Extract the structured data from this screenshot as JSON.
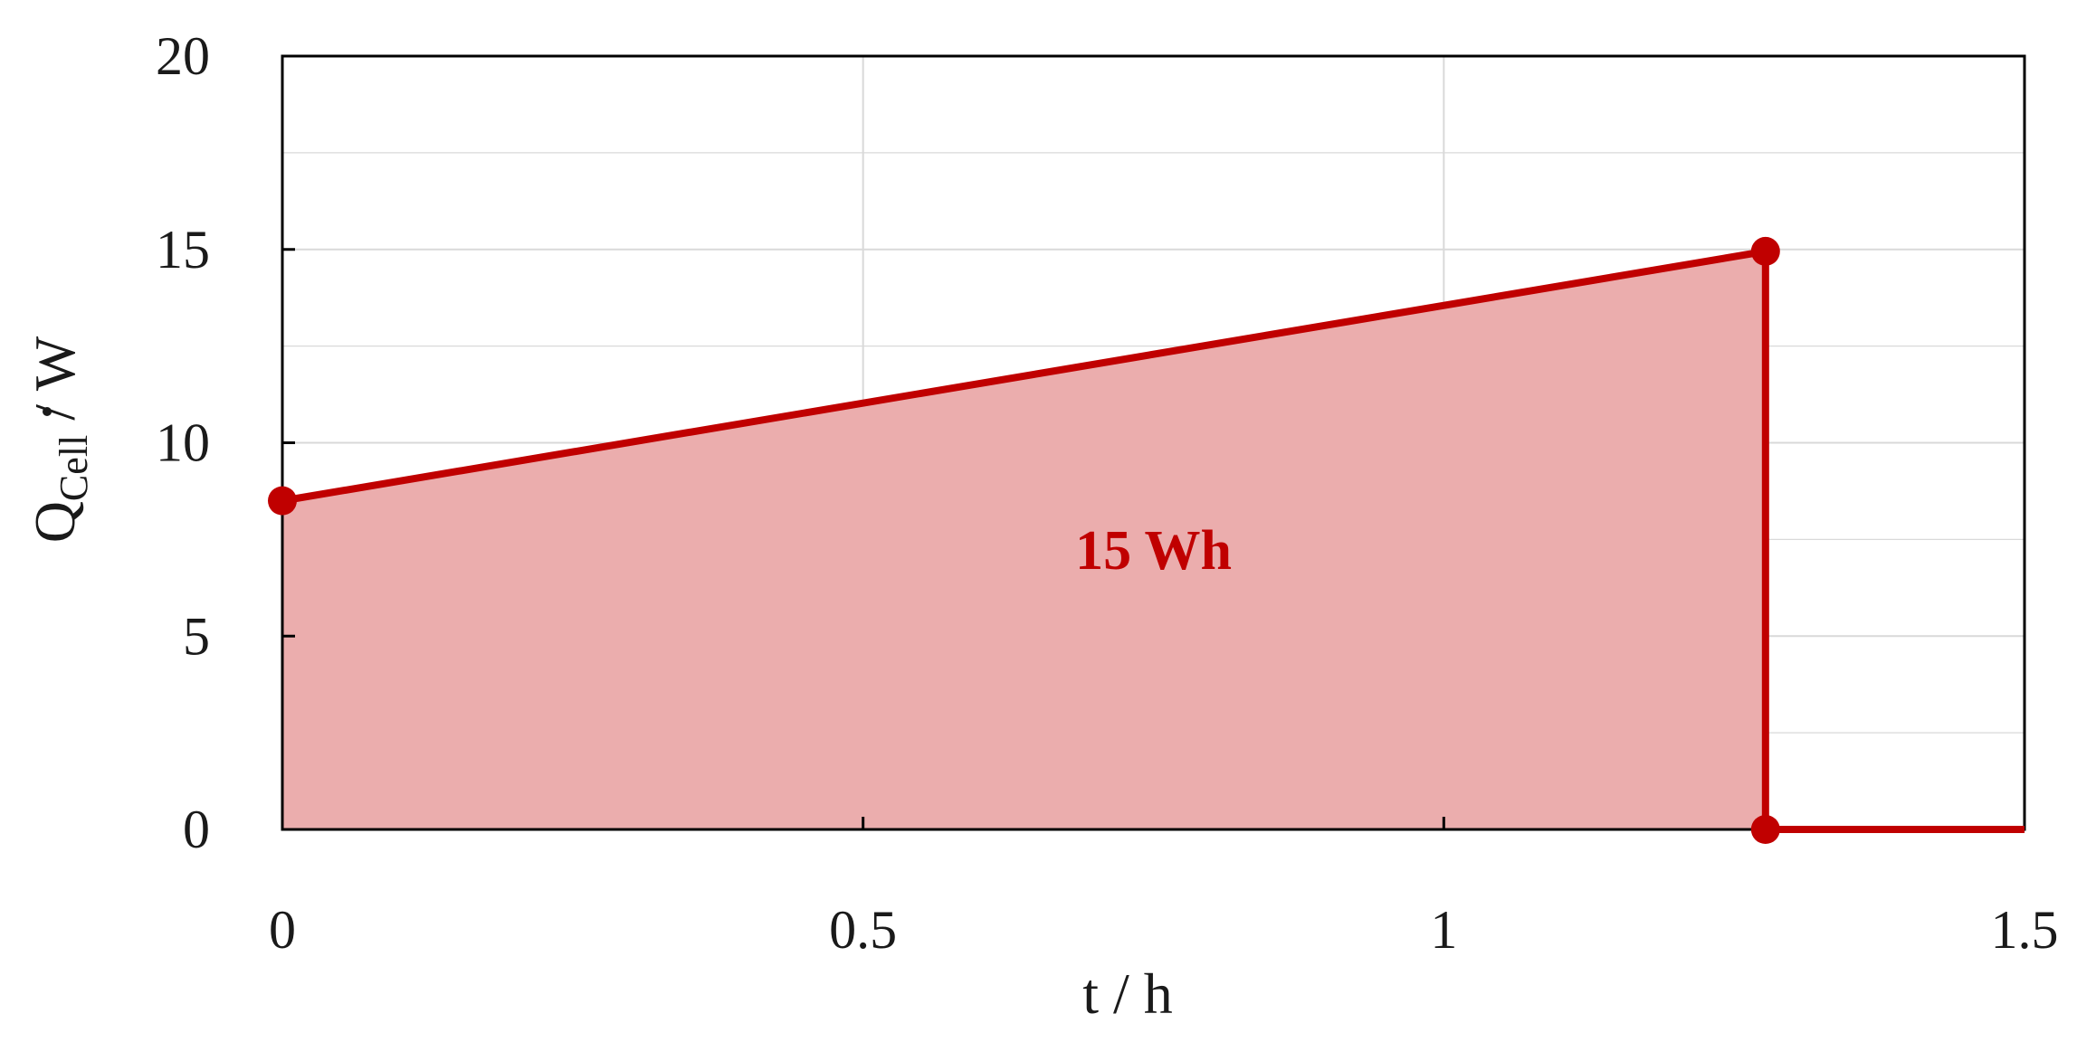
{
  "chart_data": {
    "type": "area",
    "title": "",
    "xlabel": "t / h",
    "ylabel": {
      "symbol": "Q",
      "subscript": "Cell",
      "unit": " / W"
    },
    "xlim": [
      0,
      1.5
    ],
    "ylim": [
      0,
      20
    ],
    "x_ticks": [
      0,
      0.5,
      1,
      1.5
    ],
    "x_tick_labels": [
      "0",
      "0.5",
      "1",
      "1.5"
    ],
    "y_ticks": [
      0,
      5,
      10,
      15,
      20
    ],
    "y_tick_labels": [
      "0",
      "5",
      "10",
      "15",
      "20"
    ],
    "grid": true,
    "series": [
      {
        "x": [
          0,
          1.277,
          1.277,
          1.5
        ],
        "y": [
          8.5,
          14.95,
          0,
          0
        ]
      }
    ],
    "markers": [
      {
        "x": 0,
        "y": 8.5
      },
      {
        "x": 1.277,
        "y": 14.95
      },
      {
        "x": 1.277,
        "y": 0
      }
    ],
    "annotations": [
      {
        "text": "15 Wh",
        "x": 0.75,
        "y": 7.2
      }
    ],
    "colors": {
      "line": "#c00000",
      "fill": "#ebadad",
      "annotation": "#c00000",
      "grid": "#d9d9d9",
      "axis": "#000000"
    }
  }
}
